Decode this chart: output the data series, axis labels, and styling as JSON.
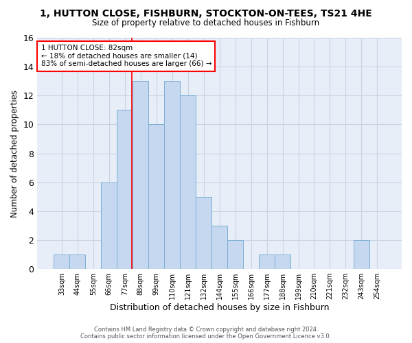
{
  "title": "1, HUTTON CLOSE, FISHBURN, STOCKTON-ON-TEES, TS21 4HE",
  "subtitle": "Size of property relative to detached houses in Fishburn",
  "xlabel": "Distribution of detached houses by size in Fishburn",
  "ylabel": "Number of detached properties",
  "bar_labels": [
    "33sqm",
    "44sqm",
    "55sqm",
    "66sqm",
    "77sqm",
    "88sqm",
    "99sqm",
    "110sqm",
    "121sqm",
    "132sqm",
    "144sqm",
    "155sqm",
    "166sqm",
    "177sqm",
    "188sqm",
    "199sqm",
    "210sqm",
    "221sqm",
    "232sqm",
    "243sqm",
    "254sqm"
  ],
  "bar_values": [
    1,
    1,
    0,
    6,
    11,
    13,
    10,
    13,
    12,
    5,
    3,
    2,
    0,
    1,
    1,
    0,
    0,
    0,
    0,
    2,
    0
  ],
  "bar_color": "#c5d8f0",
  "bar_edge_color": "#7bafd4",
  "grid_color": "#c8d4e4",
  "background_color": "#e8eef8",
  "annotation_line1": "1 HUTTON CLOSE: 82sqm",
  "annotation_line2": "← 18% of detached houses are smaller (14)",
  "annotation_line3": "83% of semi-detached houses are larger (66) →",
  "vline_x": 4.45,
  "ylim": [
    0,
    16
  ],
  "yticks": [
    0,
    2,
    4,
    6,
    8,
    10,
    12,
    14,
    16
  ],
  "footer_line1": "Contains HM Land Registry data © Crown copyright and database right 2024.",
  "footer_line2": "Contains public sector information licensed under the Open Government Licence v3.0."
}
